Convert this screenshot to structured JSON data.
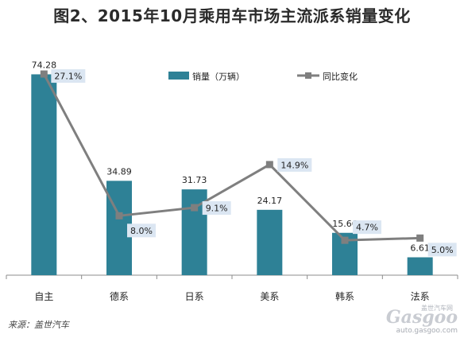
{
  "chart_data": {
    "type": "bar",
    "title": "图2、2015年10月乘用车市场主流派系销量变化",
    "categories": [
      "自主",
      "德系",
      "日系",
      "美系",
      "韩系",
      "法系"
    ],
    "series": [
      {
        "name": "销量（万辆）",
        "type": "bar",
        "values": [
          74.28,
          34.89,
          31.73,
          24.17,
          15.66,
          6.61
        ],
        "labels": [
          "74.28",
          "34.89",
          "31.73",
          "24.17",
          "15.66",
          "6.61"
        ]
      },
      {
        "name": "同比变化",
        "type": "line",
        "values": [
          27.1,
          8.0,
          9.1,
          14.9,
          4.7,
          5.0
        ],
        "labels": [
          "27.1%",
          "8.0%",
          "9.1%",
          "14.9%",
          "4.7%",
          "5.0%"
        ]
      }
    ],
    "legend_position": "top",
    "grid": false
  },
  "colors": {
    "bar": "#2e8196",
    "line": "#7f7f7f",
    "label_bg": "#dbe6f2"
  },
  "source": "来源：盖世汽车",
  "logo": {
    "brand": "Gasgoo",
    "sub": "auto.gasgoo.com",
    "cn": "盖世汽车网"
  }
}
